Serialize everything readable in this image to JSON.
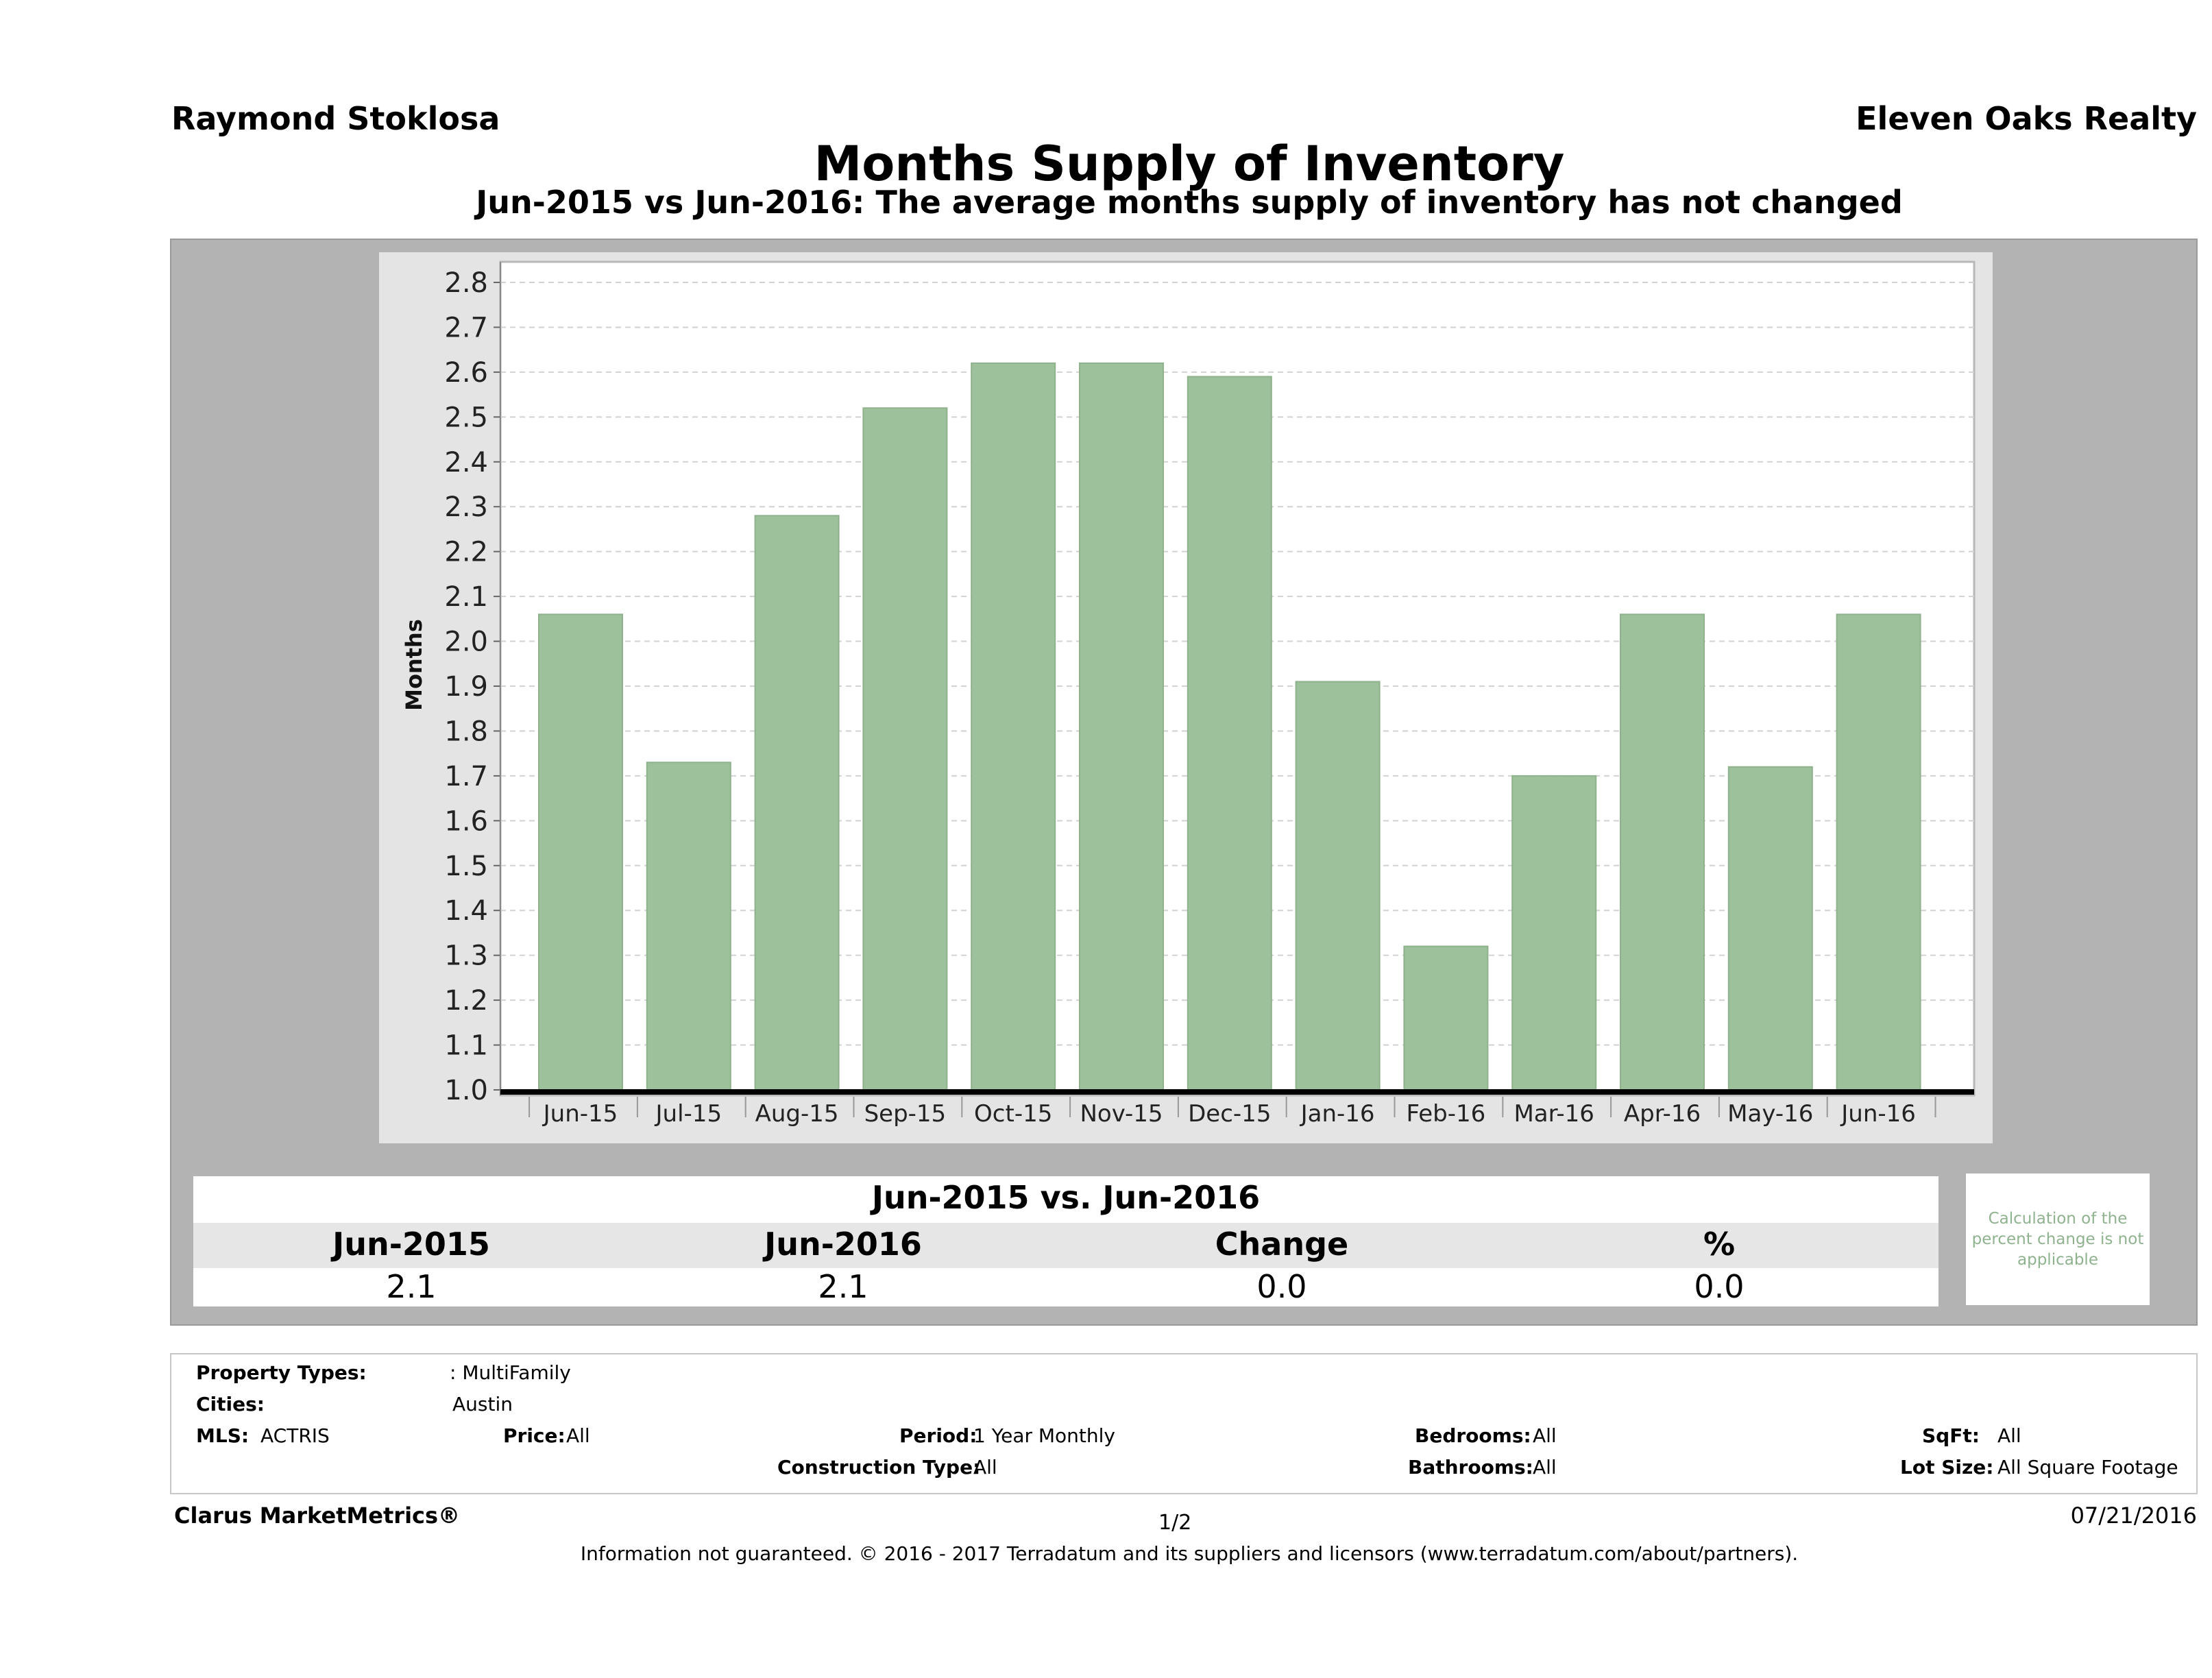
{
  "header": {
    "agent_name": "Raymond Stoklosa",
    "company": "Eleven Oaks Realty",
    "title": "Months Supply of Inventory",
    "subtitle": "Jun-2015 vs Jun-2016: The average months supply of inventory has not changed"
  },
  "colors": {
    "bar": "#9dc19b",
    "bar_border": "#8fb28d",
    "panel": "#b3b3b3",
    "chart_bg": "#e4e4e4"
  },
  "chart_data": {
    "type": "bar",
    "title": "Months Supply of Inventory",
    "xlabel": "",
    "ylabel": "Months",
    "ylim": [
      1.0,
      2.8
    ],
    "yticks": [
      1.0,
      1.1,
      1.2,
      1.3,
      1.4,
      1.5,
      1.6,
      1.7,
      1.8,
      1.9,
      2.0,
      2.1,
      2.2,
      2.3,
      2.4,
      2.5,
      2.6,
      2.7,
      2.8
    ],
    "ytick_labels": [
      "1.0",
      "1.1",
      "1.2",
      "1.3",
      "1.4",
      "1.5",
      "1.6",
      "1.7",
      "1.8",
      "1.9",
      "2.0",
      "2.1",
      "2.2",
      "2.3",
      "2.4",
      "2.5",
      "2.6",
      "2.7",
      "2.8"
    ],
    "categories": [
      "Jun-15",
      "Jul-15",
      "Aug-15",
      "Sep-15",
      "Oct-15",
      "Nov-15",
      "Dec-15",
      "Jan-16",
      "Feb-16",
      "Mar-16",
      "Apr-16",
      "May-16",
      "Jun-16"
    ],
    "values": [
      2.06,
      1.73,
      2.28,
      2.52,
      2.62,
      2.62,
      2.59,
      1.91,
      1.32,
      1.7,
      2.06,
      1.72,
      2.06
    ],
    "grid": true
  },
  "comparison": {
    "heading": "Jun-2015 vs. Jun-2016",
    "columns": [
      "Jun-2015",
      "Jun-2016",
      "Change",
      "%"
    ],
    "values": [
      "2.1",
      "2.1",
      "0.0",
      "0.0"
    ],
    "note": "Calculation of the percent change is not applicable"
  },
  "filters": {
    "property_types_label": "Property Types:",
    "property_types_value": ": MultiFamily",
    "cities_label": "Cities:",
    "cities_value": "Austin",
    "mls_label": "MLS:",
    "mls_value": "ACTRIS",
    "price_label": "Price:",
    "price_value": "All",
    "period_label": "Period:",
    "period_value": "1 Year Monthly",
    "construction_label": "Construction Type:",
    "construction_value": "All",
    "bedrooms_label": "Bedrooms:",
    "bedrooms_value": "All",
    "bathrooms_label": "Bathrooms:",
    "bathrooms_value": "All",
    "sqft_label": "SqFt:",
    "sqft_value": "All",
    "lot_size_label": "Lot Size:",
    "lot_size_value": "All Square Footage"
  },
  "footer": {
    "brand": "Clarus MarketMetrics®",
    "page": "1/2",
    "date": "07/21/2016",
    "disclaimer": "Information not guaranteed. © 2016 - 2017 Terradatum and its suppliers and licensors (www.terradatum.com/about/partners)."
  }
}
